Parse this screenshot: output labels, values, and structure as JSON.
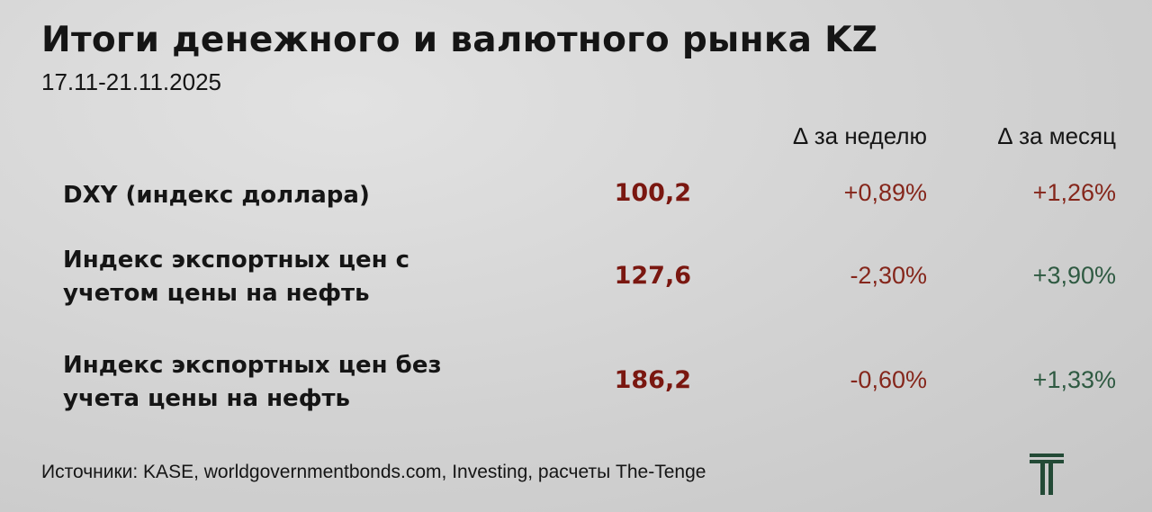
{
  "title": "Итоги денежного и валютного рынка KZ",
  "period": "17.11-21.11.2025",
  "headers": {
    "week": "∆ за неделю",
    "month": "∆ за месяц"
  },
  "colors": {
    "value": "#7a1710",
    "negative_or_red": "#85261b",
    "positive": "#2f5a42",
    "logo": "#234a36"
  },
  "rows": [
    {
      "label_lines": [
        "DXY (индекс доллара)"
      ],
      "value": "100,2",
      "week": "+0,89%",
      "month": "+1,26%",
      "week_color": "red",
      "month_color": "red"
    },
    {
      "label_lines": [
        "Индекс экспортных цен с",
        "учетом цены на нефть"
      ],
      "value": "127,6",
      "week": "-2,30%",
      "month": "+3,90%",
      "week_color": "red",
      "month_color": "green"
    },
    {
      "label_lines": [
        "Индекс экспортных цен без",
        "учета цены на нефть"
      ],
      "value": "186,2",
      "week": "-0,60%",
      "month": "+1,33%",
      "week_color": "red",
      "month_color": "green"
    }
  ],
  "footer": "Источники: KASE, worldgovernmentbonds.com, Investing, расчеты The-Tenge",
  "logo": {
    "icon": "the-tenge-t-logo",
    "text": "T"
  }
}
